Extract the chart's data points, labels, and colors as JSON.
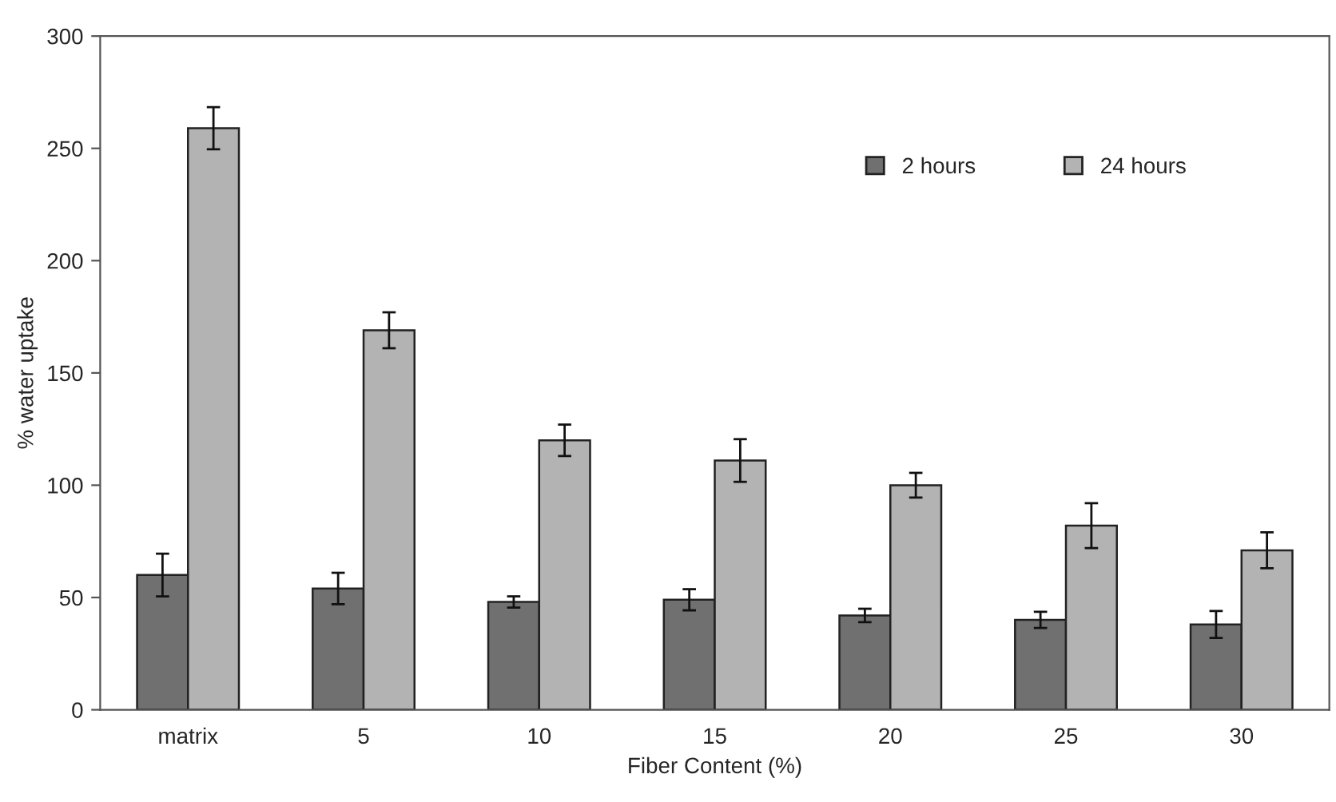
{
  "chart_data": {
    "type": "bar",
    "xlabel": "Fiber Content (%)",
    "ylabel": "% water uptake",
    "categories": [
      "matrix",
      "5",
      "10",
      "15",
      "20",
      "25",
      "30"
    ],
    "series": [
      {
        "name": "2 hours",
        "color": "#707070",
        "values": [
          60,
          54,
          48,
          49,
          42,
          40,
          38
        ],
        "errors": [
          9.5,
          7,
          2.5,
          4.7,
          3,
          3.6,
          6
        ]
      },
      {
        "name": "24 hours",
        "color": "#b3b3b3",
        "values": [
          259,
          169,
          120,
          111,
          100,
          82,
          71
        ],
        "errors": [
          9.4,
          8,
          7,
          9.5,
          5.5,
          10,
          8
        ]
      }
    ],
    "ylim": [
      0,
      300
    ],
    "yticks": [
      0,
      50,
      100,
      150,
      200,
      250,
      300
    ],
    "grid": false,
    "legend": "top right"
  }
}
